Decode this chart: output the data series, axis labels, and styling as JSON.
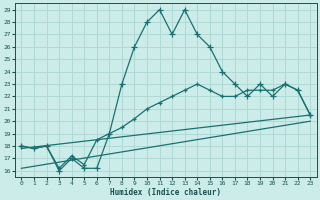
{
  "xlabel": "Humidex (Indice chaleur)",
  "bg_color": "#ccecea",
  "grid_color": "#b0d8d5",
  "line_color": "#1a7070",
  "xlim": [
    -0.5,
    23.5
  ],
  "ylim": [
    15.5,
    29.5
  ],
  "xticks": [
    0,
    1,
    2,
    3,
    4,
    5,
    6,
    7,
    8,
    9,
    10,
    11,
    12,
    13,
    14,
    15,
    16,
    17,
    18,
    19,
    20,
    21,
    22,
    23
  ],
  "yticks": [
    16,
    17,
    18,
    19,
    20,
    21,
    22,
    23,
    24,
    25,
    26,
    27,
    28,
    29
  ],
  "curve1_x": [
    0,
    1,
    2,
    3,
    4,
    5,
    6,
    7,
    8,
    9,
    10,
    11,
    12,
    13,
    14,
    15,
    16,
    17,
    18,
    19,
    20,
    21,
    22,
    23
  ],
  "curve1_y": [
    18.0,
    17.8,
    18.0,
    16.0,
    17.0,
    16.2,
    16.2,
    19.0,
    23.0,
    26.0,
    28.0,
    29.0,
    27.0,
    29.0,
    27.0,
    26.0,
    24.0,
    23.0,
    22.0,
    23.0,
    22.0,
    23.0,
    22.5,
    20.5
  ],
  "curve2_x": [
    0,
    1,
    2,
    3,
    4,
    5,
    6,
    7,
    8,
    9,
    10,
    11,
    12,
    13,
    14,
    15,
    16,
    17,
    18,
    19,
    20,
    21,
    22,
    23
  ],
  "curve2_y": [
    18.0,
    17.8,
    18.0,
    16.2,
    17.2,
    16.5,
    18.5,
    19.0,
    19.5,
    20.2,
    21.0,
    21.5,
    22.0,
    22.5,
    23.0,
    22.5,
    22.0,
    22.0,
    22.5,
    22.5,
    22.5,
    23.0,
    22.5,
    20.5
  ],
  "line1_x": [
    0,
    23
  ],
  "line1_y": [
    17.8,
    20.5
  ],
  "line2_x": [
    0,
    23
  ],
  "line2_y": [
    16.2,
    20.0
  ]
}
